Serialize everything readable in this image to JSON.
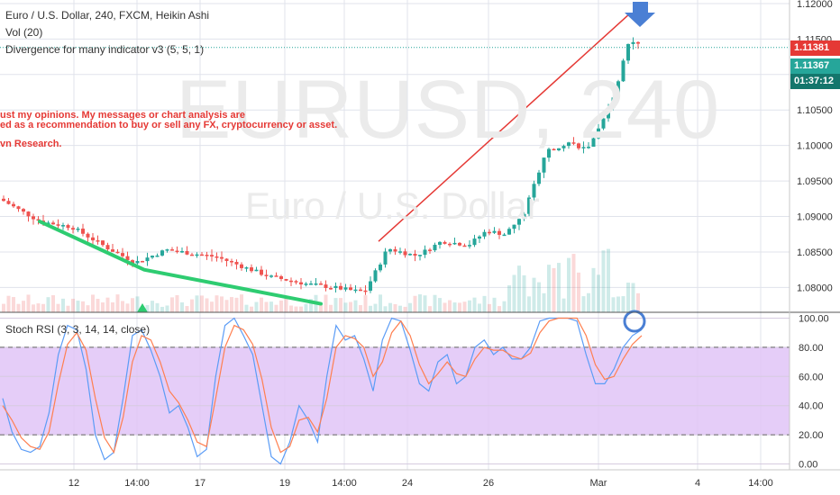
{
  "legend": {
    "symbol_line": "Euro / U.S. Dollar, 240, FXCM, Heikin Ashi",
    "vol_line": "Vol (20)",
    "div_line": "Divergence for many indicator v3 (5, 5, 1)",
    "rsi_line": "Stoch RSI (3, 3, 14, 14, close)"
  },
  "disclaimer": {
    "line1": "ust my opinions. My messages or chart analysis are",
    "line2": "ed as a recommendation to buy or sell any FX, cryptocurrency or asset.",
    "line3": "vn Research."
  },
  "watermark": {
    "symbol": "EURUSD, 240",
    "description": "Euro / U.S. Dollar"
  },
  "price_tags": {
    "last": "1.11381",
    "ha_close": "1.11367",
    "countdown": "01:37:12"
  },
  "colors": {
    "up": "#26a69a",
    "down": "#ef5350",
    "rsi_band": "#e1c4f7",
    "k_line": "#5b9cf6",
    "d_line": "#ff7f50",
    "trend_green": "#2ecc71",
    "trend_red": "#e53935",
    "arrow_blue": "#4a7fd4",
    "tag_red": "#e53935",
    "tag_green": "#26a69a",
    "tag_dark": "#14766c"
  },
  "chart_data": [
    {
      "type": "candlestick",
      "title": "Euro / U.S. Dollar, 240, FXCM, Heikin Ashi",
      "x_ticks": [
        "12",
        "14:00",
        "17",
        "19",
        "14:00",
        "24",
        "26",
        "Mar",
        "4",
        "14:00"
      ],
      "y_ticks": [
        "1.12000",
        "1.11500",
        "1.11000",
        "1.10500",
        "1.10000",
        "1.09500",
        "1.09000",
        "1.08500",
        "1.08000"
      ],
      "ylim": [
        1.0765,
        1.1205
      ],
      "last_price": 1.11381,
      "ha_close": 1.11367,
      "trendlines": [
        {
          "name": "bullish divergence",
          "color": "green",
          "points": [
            [
              1.0893
            ],
            [
              1.0825
            ],
            [
              1.0777
            ]
          ]
        },
        {
          "name": "bearish divergence",
          "color": "red",
          "points": [
            [
              1.0865
            ],
            [
              1.1185
            ]
          ]
        }
      ]
    },
    {
      "type": "line",
      "title": "Stoch RSI (3, 3, 14, 14, close)",
      "y_ticks": [
        "100.00",
        "80.00",
        "60.00",
        "40.00",
        "20.00",
        "0.00"
      ],
      "ylim": [
        -4,
        104
      ],
      "bands": [
        20,
        80
      ],
      "series": [
        {
          "key": "k",
          "values": [
            45,
            22,
            10,
            8,
            12,
            35,
            75,
            95,
            92,
            65,
            20,
            3,
            8,
            45,
            88,
            92,
            78,
            60,
            35,
            40,
            25,
            5,
            10,
            60,
            95,
            100,
            88,
            75,
            40,
            5,
            0,
            15,
            40,
            30,
            15,
            60,
            95,
            85,
            88,
            72,
            50,
            85,
            100,
            98,
            78,
            55,
            50,
            70,
            75,
            55,
            60,
            80,
            85,
            75,
            80,
            72,
            72,
            80,
            98,
            100,
            100,
            100,
            98,
            75,
            55,
            55,
            65,
            80,
            88,
            92
          ]
        },
        {
          "key": "d",
          "values": [
            40,
            30,
            18,
            12,
            10,
            22,
            55,
            82,
            90,
            78,
            45,
            18,
            8,
            32,
            70,
            88,
            85,
            70,
            50,
            42,
            30,
            15,
            12,
            45,
            80,
            95,
            92,
            82,
            58,
            25,
            8,
            12,
            30,
            32,
            22,
            45,
            80,
            88,
            86,
            80,
            60,
            70,
            90,
            98,
            88,
            68,
            55,
            62,
            70,
            62,
            60,
            72,
            80,
            78,
            78,
            74,
            72,
            76,
            90,
            98,
            100,
            100,
            100,
            88,
            68,
            58,
            60,
            72,
            82,
            88
          ]
        }
      ]
    }
  ]
}
